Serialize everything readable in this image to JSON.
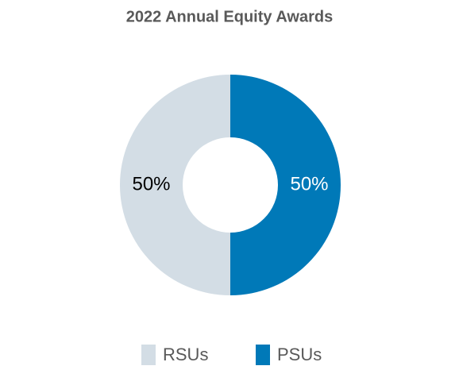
{
  "chart_data": {
    "type": "pie",
    "title": "2022 Annual Equity Awards",
    "categories": [
      "RSUs",
      "PSUs"
    ],
    "values": [
      50,
      50
    ],
    "value_labels": [
      "50%",
      "50%"
    ],
    "colors": [
      "#d3dde5",
      "#0079b8"
    ],
    "donut": true
  }
}
